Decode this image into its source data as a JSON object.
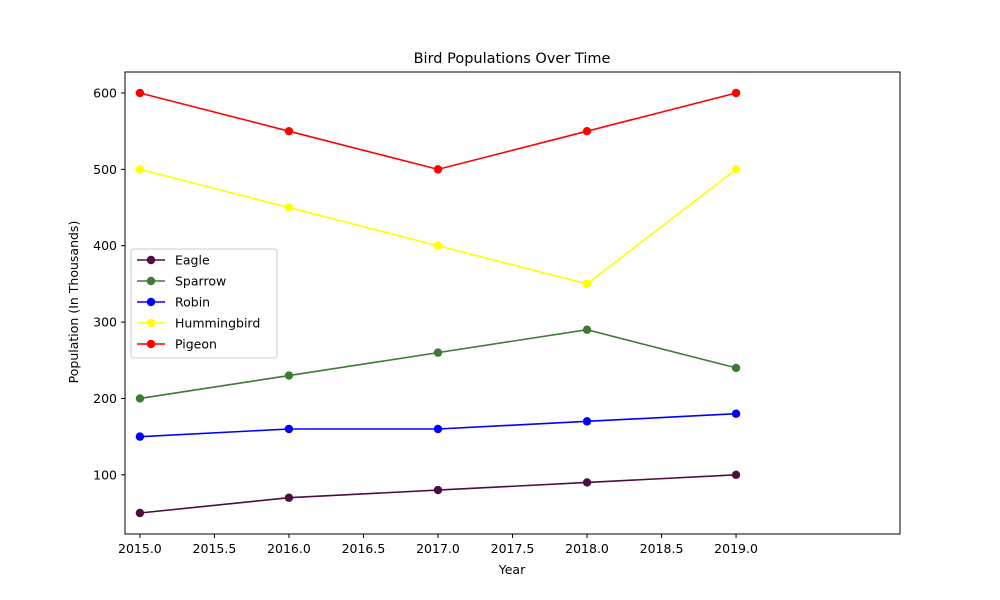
{
  "chart_data": {
    "type": "line",
    "title": "Bird Populations Over Time",
    "xlabel": "Year",
    "ylabel": "Population (In Thousands)",
    "x": [
      2015,
      2016,
      2017,
      2018,
      2019
    ],
    "xlim": [
      2014.9,
      2020.1
    ],
    "ylim": [
      22.5,
      627.5
    ],
    "xticks": [
      2015.0,
      2015.5,
      2016.0,
      2016.5,
      2017.0,
      2017.5,
      2018.0,
      2018.5,
      2019.0
    ],
    "xtick_labels": [
      "2015.0",
      "2015.5",
      "2016.0",
      "2016.5",
      "2017.0",
      "2017.5",
      "2018.0",
      "2018.5",
      "2019.0"
    ],
    "yticks": [
      100,
      200,
      300,
      400,
      500,
      600
    ],
    "ytick_labels": [
      "100",
      "200",
      "300",
      "400",
      "500",
      "600"
    ],
    "grid": false,
    "legend_position": "center-left",
    "series": [
      {
        "name": "Eagle",
        "color": "#4d0d40",
        "values": [
          50,
          70,
          80,
          90,
          100
        ]
      },
      {
        "name": "Sparrow",
        "color": "#3e7a36",
        "values": [
          200,
          230,
          260,
          290,
          240
        ]
      },
      {
        "name": "Robin",
        "color": "#0000ff",
        "values": [
          150,
          160,
          160,
          170,
          180
        ]
      },
      {
        "name": "Hummingbird",
        "color": "#ffff00",
        "values": [
          500,
          450,
          400,
          350,
          500
        ]
      },
      {
        "name": "Pigeon",
        "color": "#ff0000",
        "values": [
          600,
          550,
          500,
          550,
          600
        ]
      }
    ]
  }
}
